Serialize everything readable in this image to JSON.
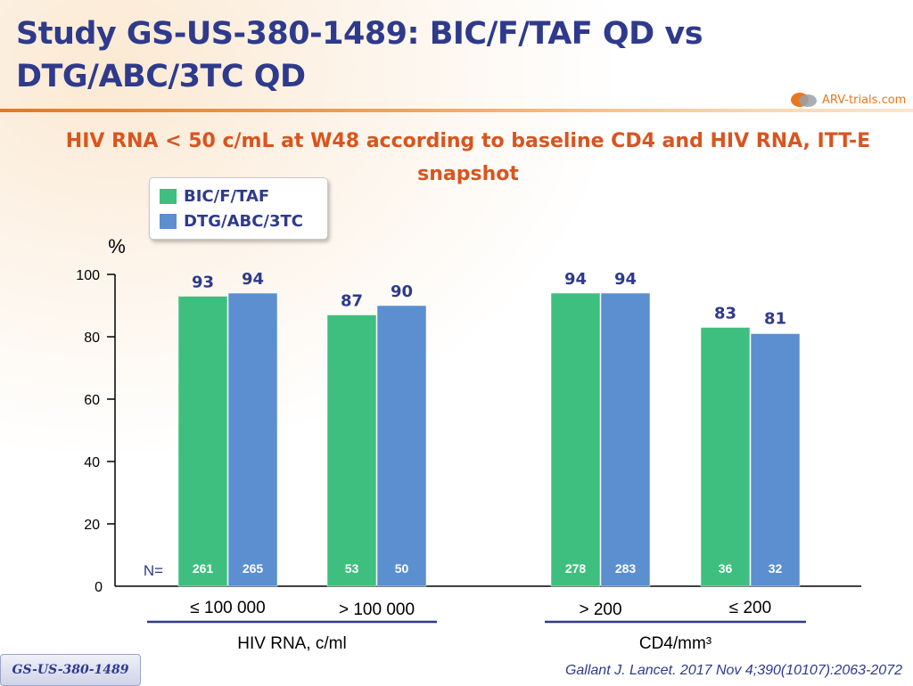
{
  "slide": {
    "title": "Study GS-US-380-1489: BIC/F/TAF QD vs DTG/ABC/3TC QD",
    "logo_text": "ARV-trials.com",
    "citation": "Gallant J. Lancet. 2017 Nov 4;390(10107):2063-2072",
    "study_badge": "GS-US-380-1489"
  },
  "colors": {
    "bic": "#3fbf7f",
    "dtg": "#5b8fd0",
    "title": "#2e3a8c",
    "subtitle": "#d9541e",
    "n_text": "#ffffff",
    "value_text": "#2e3a8c"
  },
  "chart_data": {
    "type": "bar",
    "title": "HIV RNA < 50 c/mL at W48 according to baseline CD4 and HIV RNA, ITT-E snapshot",
    "ylabel": "%",
    "ylim": [
      0,
      100
    ],
    "yticks": [
      0,
      20,
      40,
      60,
      80,
      100
    ],
    "legend": [
      "BIC/F/TAF",
      "DTG/ABC/3TC"
    ],
    "n_label": "N=",
    "categories": [
      "≤ 100 000",
      "> 100 000",
      "> 200",
      "≤ 200"
    ],
    "groups": [
      {
        "label": "HIV RNA, c/ml",
        "categories": [
          "≤ 100 000",
          "> 100 000"
        ]
      },
      {
        "label": "CD4/mm³",
        "categories": [
          "> 200",
          "≤ 200"
        ]
      }
    ],
    "series": [
      {
        "name": "BIC/F/TAF",
        "values": [
          93,
          87,
          94,
          83
        ],
        "n": [
          261,
          53,
          278,
          36
        ]
      },
      {
        "name": "DTG/ABC/3TC",
        "values": [
          94,
          90,
          94,
          81
        ],
        "n": [
          265,
          50,
          283,
          32
        ]
      }
    ]
  }
}
